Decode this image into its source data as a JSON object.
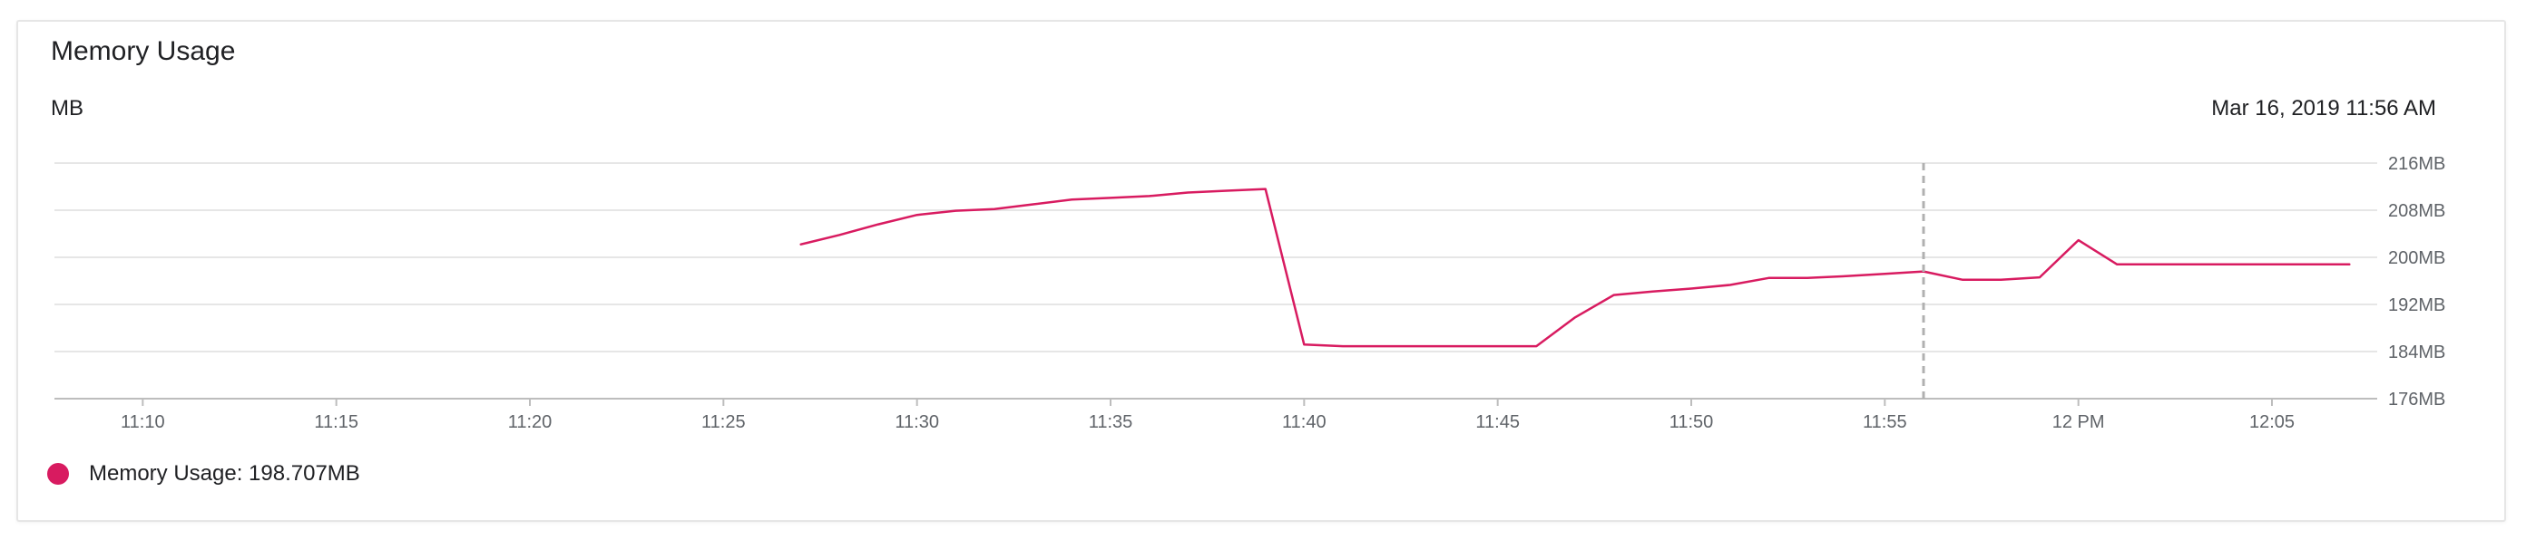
{
  "card": {
    "title": "Memory Usage",
    "unit": "MB",
    "timestamp": "Mar 16, 2019 11:56 AM"
  },
  "legend": {
    "label": "Memory Usage: 198.707MB",
    "color": "#d81b60"
  },
  "colors": {
    "series": "#d81b60",
    "grid": "#e6e6e6",
    "axis": "#bdbdbd",
    "cursor": "#b0b0b0"
  },
  "chart_data": {
    "type": "line",
    "title": "Memory Usage",
    "ylabel": "MB",
    "y_unit_suffix": "MB",
    "ylim": [
      176,
      216
    ],
    "yticks": [
      176,
      184,
      192,
      200,
      208,
      216
    ],
    "ytick_labels": [
      "176MB",
      "184MB",
      "192MB",
      "200MB",
      "208MB",
      "216MB"
    ],
    "xlim": [
      "11:08",
      "12:08"
    ],
    "xticks": [
      "11:10",
      "11:15",
      "11:20",
      "11:25",
      "11:30",
      "11:35",
      "11:40",
      "11:45",
      "11:50",
      "11:55",
      "12:00",
      "12:05"
    ],
    "xtick_labels": [
      "11:10",
      "11:15",
      "11:20",
      "11:25",
      "11:30",
      "11:35",
      "11:40",
      "11:45",
      "11:50",
      "11:55",
      "12 PM",
      "12:05"
    ],
    "cursor_time": "11:56",
    "grid": true,
    "legend_position": "bottom-left",
    "series": [
      {
        "name": "Memory Usage",
        "x": [
          "11:27",
          "11:28",
          "11:29",
          "11:30",
          "11:31",
          "11:32",
          "11:33",
          "11:34",
          "11:35",
          "11:36",
          "11:37",
          "11:38",
          "11:39",
          "11:40",
          "11:41",
          "11:42",
          "11:43",
          "11:44",
          "11:45",
          "11:46",
          "11:47",
          "11:48",
          "11:49",
          "11:50",
          "11:51",
          "11:52",
          "11:53",
          "11:54",
          "11:55",
          "11:56",
          "11:57",
          "11:58",
          "11:59",
          "12:00",
          "12:01",
          "12:02",
          "12:03",
          "12:04",
          "12:05",
          "12:06",
          "12:07"
        ],
        "values": [
          202.2,
          203.8,
          205.6,
          207.2,
          207.9,
          208.2,
          209.0,
          209.8,
          210.1,
          210.4,
          211.0,
          211.3,
          211.6,
          185.2,
          184.9,
          184.9,
          184.9,
          184.9,
          184.9,
          184.9,
          189.8,
          193.6,
          194.2,
          194.7,
          195.3,
          196.5,
          196.5,
          196.8,
          197.2,
          197.6,
          196.2,
          196.2,
          196.6,
          202.9,
          198.8,
          198.8,
          198.8,
          198.8,
          198.8,
          198.8,
          198.8
        ]
      }
    ]
  }
}
